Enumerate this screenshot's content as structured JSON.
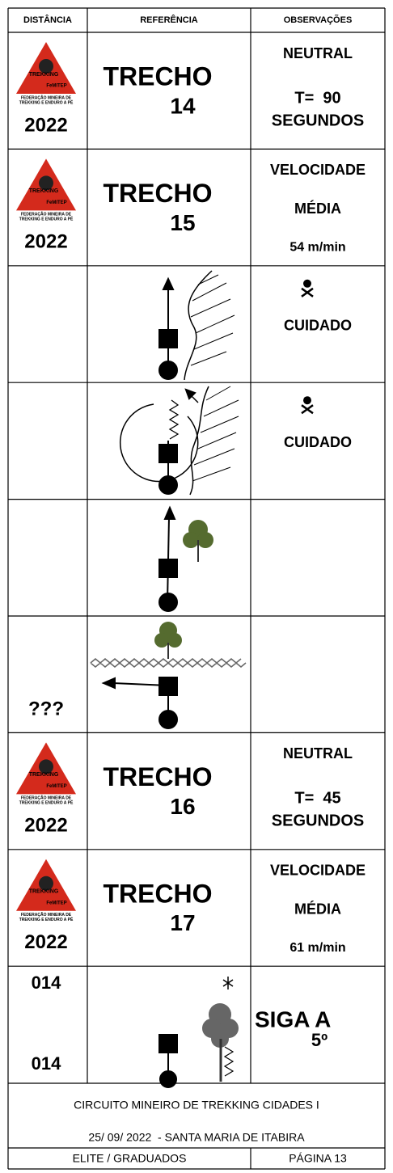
{
  "header": [
    "DISTÂNCIA",
    "REFERÊNCIA",
    "OBSERVAÇÕES"
  ],
  "logo": {
    "name": "TREKKING",
    "org": "FeMITEP",
    "caption": [
      "FEDERAÇÃO MINEIRA DE",
      "TREKKING E ENDURO A PÉ"
    ]
  },
  "rows": [
    {
      "distance": [
        "2022"
      ],
      "reference": [
        "TRECHO",
        "14"
      ],
      "observations": [
        "NEUTRAL",
        "T=  90",
        "SEGUNDOS"
      ]
    },
    {
      "distance": [
        "2022"
      ],
      "reference": [
        "TRECHO",
        "15"
      ],
      "observations": [
        "VELOCIDADE",
        "MÉDIA",
        "54 m/min"
      ]
    },
    {
      "observations": [
        "CUIDADO"
      ]
    },
    {
      "observations": [
        "CUIDADO"
      ]
    },
    {},
    {
      "distance": [
        "???"
      ]
    },
    {
      "distance": [
        "2022"
      ],
      "reference": [
        "TRECHO",
        "16"
      ],
      "observations": [
        "NEUTRAL",
        "T=  45",
        "SEGUNDOS"
      ]
    },
    {
      "distance": [
        "2022"
      ],
      "reference": [
        "TRECHO",
        "17"
      ],
      "observations": [
        "VELOCIDADE",
        "MÉDIA",
        "61 m/min"
      ]
    },
    {
      "distance": [
        "014",
        "014"
      ],
      "observations": [
        "SIGA A",
        "5º"
      ]
    }
  ],
  "footer": {
    "lines": [
      "CIRCUITO MINEIRO DE TREKKING CIDADES I",
      "25/ 09/ 2022  - SANTA MARIA DE ITABIRA"
    ],
    "category": "ELITE / GRADUADOS",
    "page": "PÁGINA 13"
  }
}
